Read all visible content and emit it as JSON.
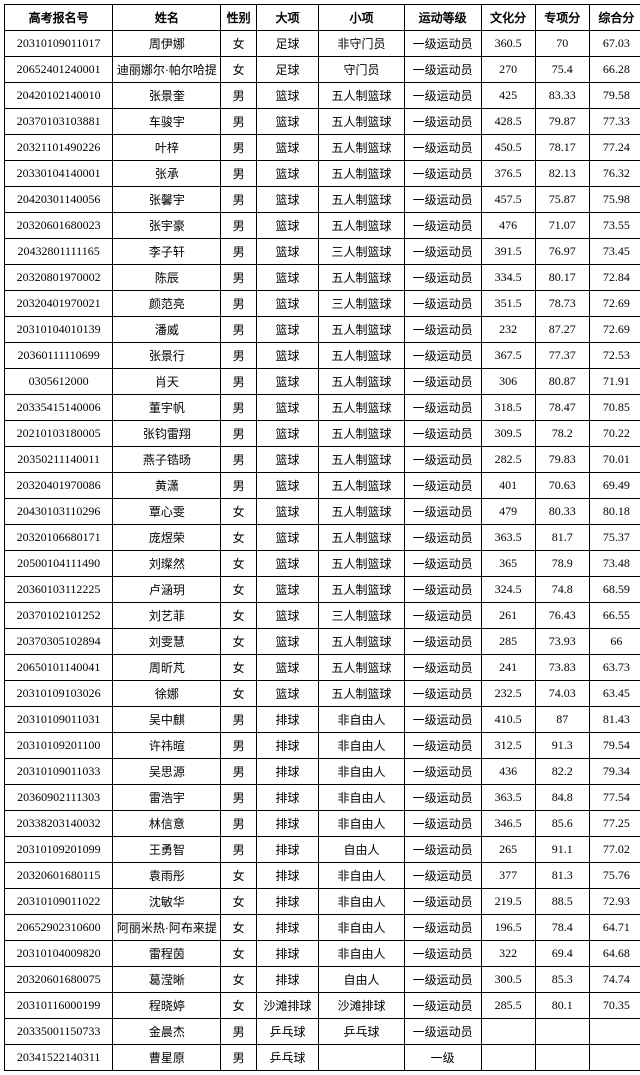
{
  "table": {
    "columns": [
      "高考报名号",
      "姓名",
      "性别",
      "大项",
      "小项",
      "运动等级",
      "文化分",
      "专项分",
      "综合分"
    ],
    "col_classes": [
      "col-id",
      "col-name",
      "col-sex",
      "col-cat",
      "col-sub",
      "col-lvl",
      "col-s1",
      "col-s2",
      "col-s3"
    ],
    "rows": [
      [
        "20310109011017",
        "周伊娜",
        "女",
        "足球",
        "非守门员",
        "一级运动员",
        "360.5",
        "70",
        "67.03"
      ],
      [
        "20652401240001",
        "迪丽娜尔·帕尔哈提",
        "女",
        "足球",
        "守门员",
        "一级运动员",
        "270",
        "75.4",
        "66.28"
      ],
      [
        "20420102140010",
        "张景奎",
        "男",
        "篮球",
        "五人制篮球",
        "一级运动员",
        "425",
        "83.33",
        "79.58"
      ],
      [
        "20370103103881",
        "车骏宇",
        "男",
        "篮球",
        "五人制篮球",
        "一级运动员",
        "428.5",
        "79.87",
        "77.33"
      ],
      [
        "20321101490226",
        "叶梓",
        "男",
        "篮球",
        "五人制篮球",
        "一级运动员",
        "450.5",
        "78.17",
        "77.24"
      ],
      [
        "20330104140001",
        "张承",
        "男",
        "篮球",
        "五人制篮球",
        "一级运动员",
        "376.5",
        "82.13",
        "76.32"
      ],
      [
        "20420301140056",
        "张馨宇",
        "男",
        "篮球",
        "五人制篮球",
        "一级运动员",
        "457.5",
        "75.87",
        "75.98"
      ],
      [
        "20320601680023",
        "张宇豪",
        "男",
        "篮球",
        "五人制篮球",
        "一级运动员",
        "476",
        "71.07",
        "73.55"
      ],
      [
        "20432801111165",
        "李子轩",
        "男",
        "篮球",
        "三人制篮球",
        "一级运动员",
        "391.5",
        "76.97",
        "73.45"
      ],
      [
        "20320801970002",
        "陈辰",
        "男",
        "篮球",
        "五人制篮球",
        "一级运动员",
        "334.5",
        "80.17",
        "72.84"
      ],
      [
        "20320401970021",
        "颜范亮",
        "男",
        "篮球",
        "三人制篮球",
        "一级运动员",
        "351.5",
        "78.73",
        "72.69"
      ],
      [
        "20310104010139",
        "潘威",
        "男",
        "篮球",
        "五人制篮球",
        "一级运动员",
        "232",
        "87.27",
        "72.69"
      ],
      [
        "20360111110699",
        "张景行",
        "男",
        "篮球",
        "五人制篮球",
        "一级运动员",
        "367.5",
        "77.37",
        "72.53"
      ],
      [
        "0305612000",
        "肖天",
        "男",
        "篮球",
        "五人制篮球",
        "一级运动员",
        "306",
        "80.87",
        "71.91"
      ],
      [
        "20335415140006",
        "董宇帆",
        "男",
        "篮球",
        "五人制篮球",
        "一级运动员",
        "318.5",
        "78.47",
        "70.85"
      ],
      [
        "20210103180005",
        "张钧雷翔",
        "男",
        "篮球",
        "五人制篮球",
        "一级运动员",
        "309.5",
        "78.2",
        "70.22"
      ],
      [
        "20350211140011",
        "燕子锆旸",
        "男",
        "篮球",
        "五人制篮球",
        "一级运动员",
        "282.5",
        "79.83",
        "70.01"
      ],
      [
        "20320401970086",
        "黄潇",
        "男",
        "篮球",
        "五人制篮球",
        "一级运动员",
        "401",
        "70.63",
        "69.49"
      ],
      [
        "20430103110296",
        "覃心雯",
        "女",
        "篮球",
        "五人制篮球",
        "一级运动员",
        "479",
        "80.33",
        "80.18"
      ],
      [
        "20320106680171",
        "庞煜荣",
        "女",
        "篮球",
        "五人制篮球",
        "一级运动员",
        "363.5",
        "81.7",
        "75.37"
      ],
      [
        "20500104111490",
        "刘璨然",
        "女",
        "篮球",
        "五人制篮球",
        "一级运动员",
        "365",
        "78.9",
        "73.48"
      ],
      [
        "20360103112225",
        "卢涵玥",
        "女",
        "篮球",
        "五人制篮球",
        "一级运动员",
        "324.5",
        "74.8",
        "68.59"
      ],
      [
        "20370102101252",
        "刘艺菲",
        "女",
        "篮球",
        "三人制篮球",
        "一级运动员",
        "261",
        "76.43",
        "66.55"
      ],
      [
        "20370305102894",
        "刘雯慧",
        "女",
        "篮球",
        "五人制篮球",
        "一级运动员",
        "285",
        "73.93",
        "66"
      ],
      [
        "20650101140041",
        "周昕芃",
        "女",
        "篮球",
        "五人制篮球",
        "一级运动员",
        "241",
        "73.83",
        "63.73"
      ],
      [
        "20310109103026",
        "徐娜",
        "女",
        "篮球",
        "五人制篮球",
        "一级运动员",
        "232.5",
        "74.03",
        "63.45"
      ],
      [
        "20310109011031",
        "吴中麒",
        "男",
        "排球",
        "非自由人",
        "一级运动员",
        "410.5",
        "87",
        "81.43"
      ],
      [
        "20310109201100",
        "许祎暄",
        "男",
        "排球",
        "非自由人",
        "一级运动员",
        "312.5",
        "91.3",
        "79.54"
      ],
      [
        "20310109011033",
        "吴思源",
        "男",
        "排球",
        "非自由人",
        "一级运动员",
        "436",
        "82.2",
        "79.34"
      ],
      [
        "20360902111303",
        "雷浩宇",
        "男",
        "排球",
        "非自由人",
        "一级运动员",
        "363.5",
        "84.8",
        "77.54"
      ],
      [
        "20338203140032",
        "林信意",
        "男",
        "排球",
        "非自由人",
        "一级运动员",
        "346.5",
        "85.6",
        "77.25"
      ],
      [
        "20310109201099",
        "王勇智",
        "男",
        "排球",
        "自由人",
        "一级运动员",
        "265",
        "91.1",
        "77.02"
      ],
      [
        "20320601680115",
        "袁雨彤",
        "女",
        "排球",
        "非自由人",
        "一级运动员",
        "377",
        "81.3",
        "75.76"
      ],
      [
        "20310109011022",
        "沈敏华",
        "女",
        "排球",
        "非自由人",
        "一级运动员",
        "219.5",
        "88.5",
        "72.93"
      ],
      [
        "20652902310600",
        "阿丽米热·阿布来提",
        "女",
        "排球",
        "非自由人",
        "一级运动员",
        "196.5",
        "78.4",
        "64.71"
      ],
      [
        "20310104009820",
        "雷程茵",
        "女",
        "排球",
        "非自由人",
        "一级运动员",
        "322",
        "69.4",
        "64.68"
      ],
      [
        "20320601680075",
        "葛滢晰",
        "女",
        "排球",
        "自由人",
        "一级运动员",
        "300.5",
        "85.3",
        "74.74"
      ],
      [
        "20310116000199",
        "程晓婷",
        "女",
        "沙滩排球",
        "沙滩排球",
        "一级运动员",
        "285.5",
        "80.1",
        "70.35"
      ],
      [
        "20335001150733",
        "金晨杰",
        "男",
        "乒乓球",
        "乒乓球",
        "一级运动员",
        "",
        "",
        ""
      ],
      [
        "20341522140311",
        "曹星原",
        "男",
        "乒乓球",
        "",
        "一级",
        "",
        "",
        ""
      ]
    ]
  }
}
